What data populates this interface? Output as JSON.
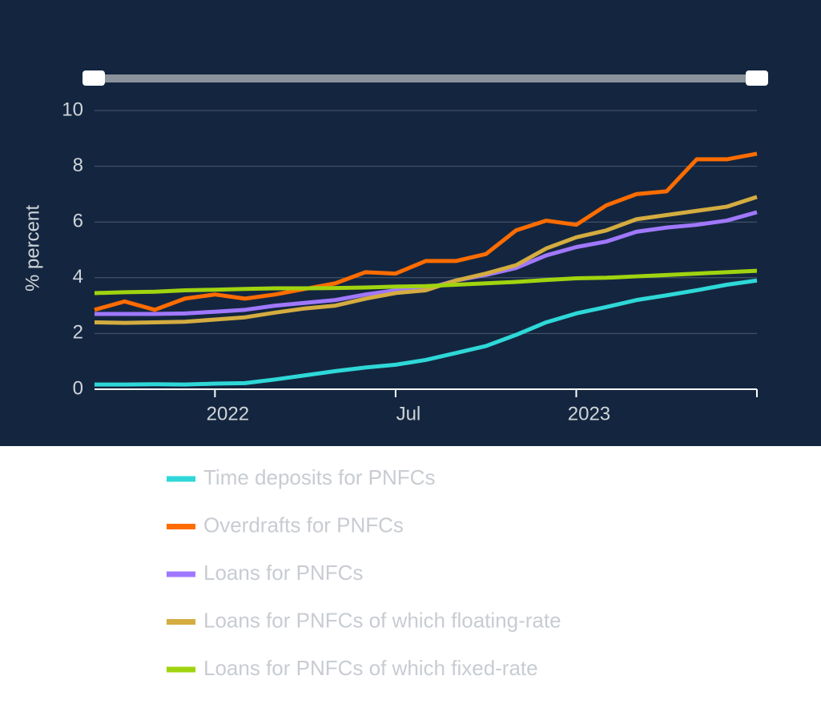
{
  "chart_data": {
    "type": "line",
    "y_label": "% percent",
    "x": [
      "2021-09",
      "2021-10",
      "2021-11",
      "2021-12",
      "2022-01",
      "2022-02",
      "2022-03",
      "2022-04",
      "2022-05",
      "2022-06",
      "2022-07",
      "2022-08",
      "2022-09",
      "2022-10",
      "2022-11",
      "2022-12",
      "2023-01",
      "2023-02",
      "2023-03",
      "2023-04",
      "2023-05",
      "2023-06",
      "2023-07"
    ],
    "xlim": [
      "2021-09",
      "2023-07"
    ],
    "xticks": [
      {
        "value": "2022-01",
        "label": "2022"
      },
      {
        "value": "2022-07",
        "label": "Jul"
      },
      {
        "value": "2023-01",
        "label": "2023"
      }
    ],
    "ylim": [
      0,
      10
    ],
    "yticks": [
      0,
      2,
      4,
      6,
      8,
      10
    ],
    "grid": true,
    "series": [
      {
        "name": "Time deposits for PNFCs",
        "color": "#2ed8d8",
        "values": [
          0.17,
          0.17,
          0.18,
          0.17,
          0.2,
          0.22,
          0.35,
          0.5,
          0.65,
          0.78,
          0.88,
          1.05,
          1.3,
          1.55,
          1.95,
          2.4,
          2.72,
          2.95,
          3.2,
          3.37,
          3.55,
          3.75,
          3.9
        ]
      },
      {
        "name": "Overdrafts for PNFCs",
        "color": "#ff6c00",
        "values": [
          2.85,
          3.15,
          2.85,
          3.25,
          3.4,
          3.25,
          3.4,
          3.6,
          3.8,
          4.2,
          4.15,
          4.6,
          4.6,
          4.85,
          5.7,
          6.05,
          5.9,
          6.6,
          7.0,
          7.1,
          8.25,
          8.25,
          8.45
        ]
      },
      {
        "name": "Loans for PNFCs",
        "color": "#a078ff",
        "values": [
          2.7,
          2.7,
          2.7,
          2.72,
          2.78,
          2.85,
          3.0,
          3.1,
          3.2,
          3.4,
          3.55,
          3.6,
          3.9,
          4.1,
          4.35,
          4.8,
          5.1,
          5.3,
          5.65,
          5.8,
          5.9,
          6.05,
          6.35
        ]
      },
      {
        "name": "Loans for PNFCs of which floating-rate",
        "color": "#d4ac40",
        "values": [
          2.4,
          2.38,
          2.4,
          2.42,
          2.5,
          2.58,
          2.75,
          2.9,
          3.0,
          3.25,
          3.45,
          3.55,
          3.9,
          4.15,
          4.45,
          5.05,
          5.45,
          5.7,
          6.1,
          6.25,
          6.4,
          6.55,
          6.9
        ]
      },
      {
        "name": "Loans for PNFCs of which fixed-rate",
        "color": "#a0d40f",
        "values": [
          3.45,
          3.48,
          3.5,
          3.55,
          3.57,
          3.6,
          3.62,
          3.62,
          3.63,
          3.65,
          3.68,
          3.7,
          3.75,
          3.8,
          3.85,
          3.92,
          3.98,
          4.0,
          4.05,
          4.1,
          4.15,
          4.2,
          4.25
        ]
      }
    ]
  }
}
